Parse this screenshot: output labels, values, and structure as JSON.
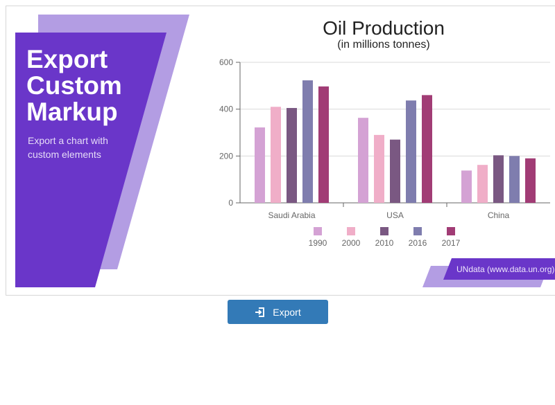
{
  "promo": {
    "title": "Export Custom Markup",
    "subtitle": "Export a chart with custom elements",
    "colors": {
      "panel_front": "#6a36c9",
      "panel_back": "#b39de3"
    }
  },
  "source": {
    "label": "UNdata (www.data.un.org)"
  },
  "export_button": {
    "label": "Export",
    "icon": "export-icon",
    "color": "#337ab7"
  },
  "chart_data": {
    "type": "bar",
    "title": "Oil Production",
    "subtitle": "(in millions tonnes)",
    "categories": [
      "Saudi Arabia",
      "USA",
      "China"
    ],
    "series": [
      {
        "name": "1990",
        "values": [
          322,
          363,
          138
        ],
        "color": "#d4a2d4"
      },
      {
        "name": "2000",
        "values": [
          410,
          290,
          162
        ],
        "color": "#f0aec8"
      },
      {
        "name": "2010",
        "values": [
          405,
          270,
          203
        ],
        "color": "#7a5882"
      },
      {
        "name": "2016",
        "values": [
          523,
          437,
          200
        ],
        "color": "#7f7dae"
      },
      {
        "name": "2017",
        "values": [
          497,
          460,
          190
        ],
        "color": "#a13c75"
      }
    ],
    "ylim": [
      0,
      600
    ],
    "yticks": [
      0,
      200,
      400,
      600
    ],
    "grid": true,
    "legend": "bottom"
  }
}
